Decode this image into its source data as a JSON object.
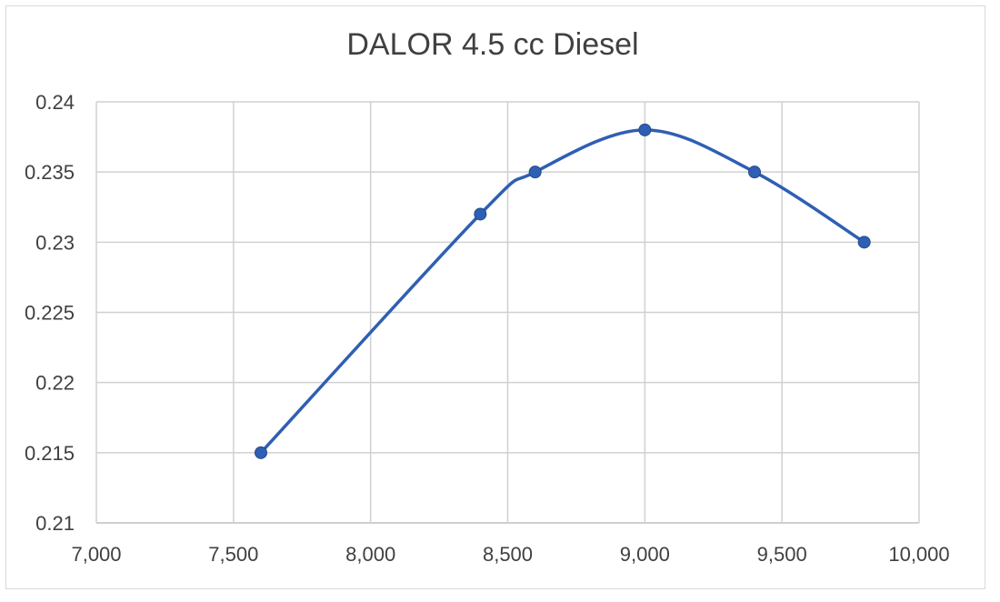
{
  "chart_data": {
    "type": "scatter",
    "title": "DALOR 4.5 cc Diesel",
    "xlabel": "",
    "ylabel": "",
    "xlim": [
      7000,
      10000
    ],
    "ylim": [
      0.21,
      0.24
    ],
    "x_ticks": [
      "7,000",
      "7,500",
      "8,000",
      "8,500",
      "9,000",
      "9,500",
      "10,000"
    ],
    "y_ticks": [
      "0.21",
      "0.215",
      "0.22",
      "0.225",
      "0.23",
      "0.235",
      "0.24"
    ],
    "grid": true,
    "smooth_line": true,
    "series": [
      {
        "x": [
          7600,
          8400,
          8600,
          9000,
          9400,
          9800
        ],
        "y": [
          0.215,
          0.232,
          0.235,
          0.238,
          0.235,
          0.23
        ]
      }
    ],
    "colors": {
      "series": "#2f5fb3",
      "grid": "#d0d0d0",
      "axis": "#bfbfbf",
      "text": "#404040"
    }
  }
}
